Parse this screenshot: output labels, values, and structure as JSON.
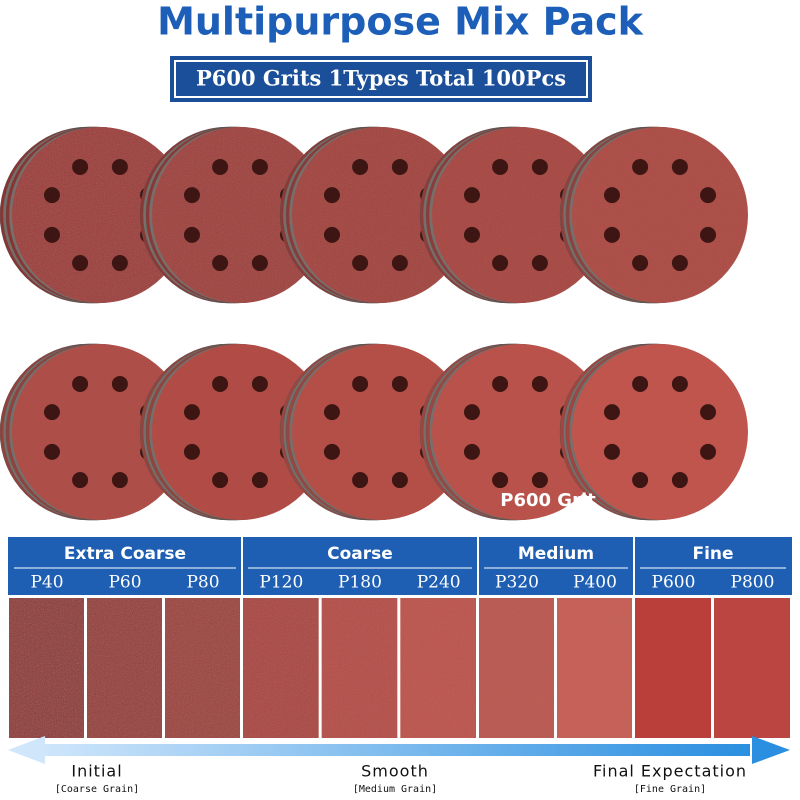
{
  "title": "Multipurpose Mix Pack",
  "subtitle": "P600 Grits 1Types Total 100Pcs",
  "disc_label": "P600 Grit",
  "groups": [
    {
      "name": "Extra Coarse",
      "grits": [
        "P40",
        "P60",
        "P80"
      ]
    },
    {
      "name": "Coarse",
      "grits": [
        "P120",
        "P180",
        "P240"
      ]
    },
    {
      "name": "Medium",
      "grits": [
        "P320",
        "P400"
      ]
    },
    {
      "name": "Fine",
      "grits": [
        "P600",
        "P800"
      ]
    }
  ],
  "scale": [
    {
      "label": "Initial",
      "note": "[Coarse Grain]"
    },
    {
      "label": "Smooth",
      "note": "[Medium Grain]"
    },
    {
      "label": "Final Expectation",
      "note": "[Fine Grain]"
    }
  ]
}
